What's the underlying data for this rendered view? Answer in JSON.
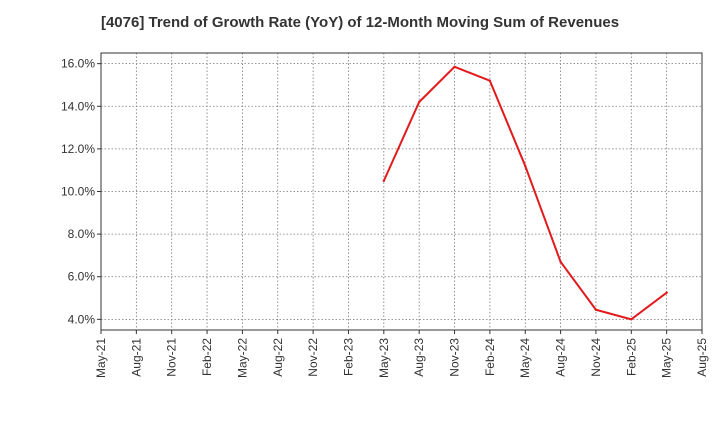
{
  "chart_data": {
    "type": "line",
    "title": "[4076]  Trend of Growth Rate (YoY) of 12-Month Moving Sum of Revenues",
    "xlabel": "",
    "ylabel": "",
    "x_tick_labels": [
      "May-21",
      "Aug-21",
      "Nov-21",
      "Feb-22",
      "May-22",
      "Aug-22",
      "Nov-22",
      "Feb-23",
      "May-23",
      "Aug-23",
      "Nov-23",
      "Feb-24",
      "May-24",
      "Aug-24",
      "Nov-24",
      "Feb-25",
      "May-25",
      "Aug-25"
    ],
    "y_tick_labels": [
      "4.0%",
      "6.0%",
      "8.0%",
      "10.0%",
      "12.0%",
      "14.0%",
      "16.0%"
    ],
    "y_ticks": [
      4,
      6,
      8,
      10,
      12,
      14,
      16
    ],
    "ylim": [
      3.5,
      16.5
    ],
    "grid": true,
    "line_color": "#e31a1c",
    "series": [
      {
        "x": [
          "May-23",
          "Aug-23",
          "Nov-23",
          "Feb-24",
          "May-24",
          "Aug-24",
          "Nov-24",
          "Feb-25",
          "May-25"
        ],
        "values": [
          10.5,
          14.2,
          15.85,
          15.2,
          11.2,
          6.7,
          4.45,
          4.0,
          5.25
        ]
      }
    ]
  }
}
